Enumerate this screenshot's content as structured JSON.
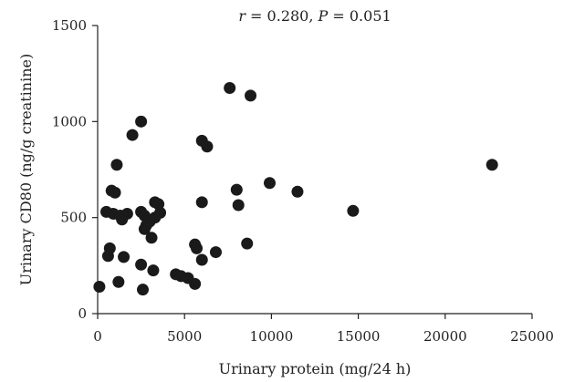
{
  "chart_data": {
    "type": "scatter",
    "title": "",
    "annotation": {
      "r_symbol": "r",
      "r_text": " = 0.280, ",
      "p_symbol": "P",
      "p_text": " = 0.051"
    },
    "xlabel": "Urinary protein (mg/24 h)",
    "ylabel": "Urinary CD80 (ng/g creatinine)",
    "xlim": [
      0,
      25000
    ],
    "ylim": [
      0,
      1500
    ],
    "xticks": [
      "0",
      "5000",
      "10000",
      "15000",
      "20000",
      "25000"
    ],
    "yticks": [
      "0",
      "500",
      "1000",
      "1500"
    ],
    "grid": false,
    "legend": "none",
    "series": [
      {
        "points": [
          [
            100,
            140
          ],
          [
            500,
            530
          ],
          [
            700,
            340
          ],
          [
            600,
            300
          ],
          [
            800,
            640
          ],
          [
            900,
            520
          ],
          [
            1000,
            630
          ],
          [
            1100,
            775
          ],
          [
            1200,
            165
          ],
          [
            1300,
            510
          ],
          [
            1400,
            490
          ],
          [
            1500,
            295
          ],
          [
            1700,
            520
          ],
          [
            2000,
            930
          ],
          [
            2500,
            1000
          ],
          [
            2500,
            530
          ],
          [
            2500,
            255
          ],
          [
            2600,
            125
          ],
          [
            2700,
            510
          ],
          [
            2700,
            440
          ],
          [
            2800,
            460
          ],
          [
            3000,
            480
          ],
          [
            3100,
            395
          ],
          [
            3200,
            225
          ],
          [
            3300,
            500
          ],
          [
            3300,
            580
          ],
          [
            3500,
            570
          ],
          [
            3600,
            525
          ],
          [
            4500,
            205
          ],
          [
            4800,
            195
          ],
          [
            5200,
            185
          ],
          [
            5600,
            155
          ],
          [
            5600,
            360
          ],
          [
            5700,
            340
          ],
          [
            6000,
            900
          ],
          [
            6000,
            580
          ],
          [
            6000,
            280
          ],
          [
            6300,
            870
          ],
          [
            6800,
            320
          ],
          [
            7600,
            1175
          ],
          [
            8000,
            645
          ],
          [
            8100,
            565
          ],
          [
            8600,
            365
          ],
          [
            8800,
            1135
          ],
          [
            9900,
            680
          ],
          [
            11500,
            635
          ],
          [
            14700,
            535
          ],
          [
            22700,
            775
          ]
        ]
      }
    ]
  }
}
